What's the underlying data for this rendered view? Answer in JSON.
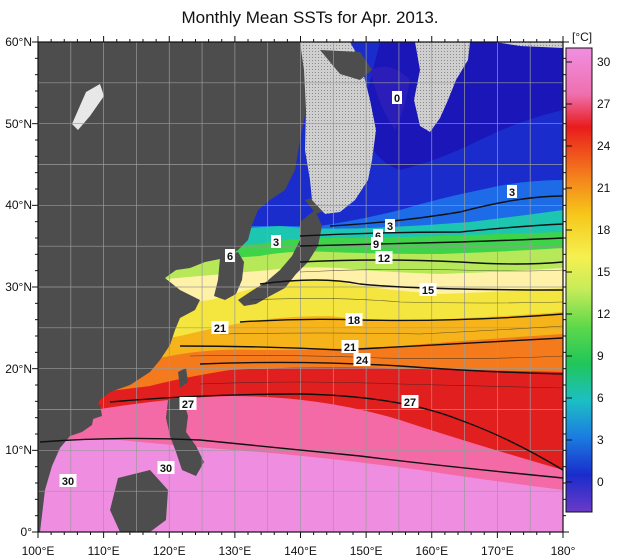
{
  "title": "Monthly Mean SSTs for Apr. 2013.",
  "lat_labels": [
    "60°N",
    "50°N",
    "40°N",
    "30°N",
    "20°N",
    "10°N",
    "0°"
  ],
  "lon_labels": [
    "100°E",
    "110°E",
    "120°E",
    "130°E",
    "140°E",
    "150°E",
    "160°E",
    "170°E",
    "180°"
  ],
  "colorbar": {
    "unit": "[°C]",
    "ticks": [
      "30",
      "27",
      "24",
      "21",
      "18",
      "15",
      "12",
      "9",
      "6",
      "3",
      "0"
    ]
  },
  "contour_labels": [
    "0",
    "3",
    "3",
    "3",
    "6",
    "6",
    "9",
    "12",
    "15",
    "18",
    "21",
    "21",
    "24",
    "27",
    "27",
    "30",
    "30"
  ],
  "colors": {
    "land": "#4d4d4d",
    "ice": "#bdbdbd",
    "sst_30": "#ef8ee0",
    "sst_27": "#e21f1f",
    "sst_24": "#f78a1f",
    "sst_21": "#f5c41a",
    "sst_18": "#f3ec4a",
    "sst_15": "#fff3b0",
    "sst_12": "#8ee25a",
    "sst_9": "#2fcc3a",
    "sst_6": "#1cc6c0",
    "sst_3": "#1d6be6",
    "sst_0": "#1a16b8",
    "sst_below0": "#7a3cc0"
  }
}
